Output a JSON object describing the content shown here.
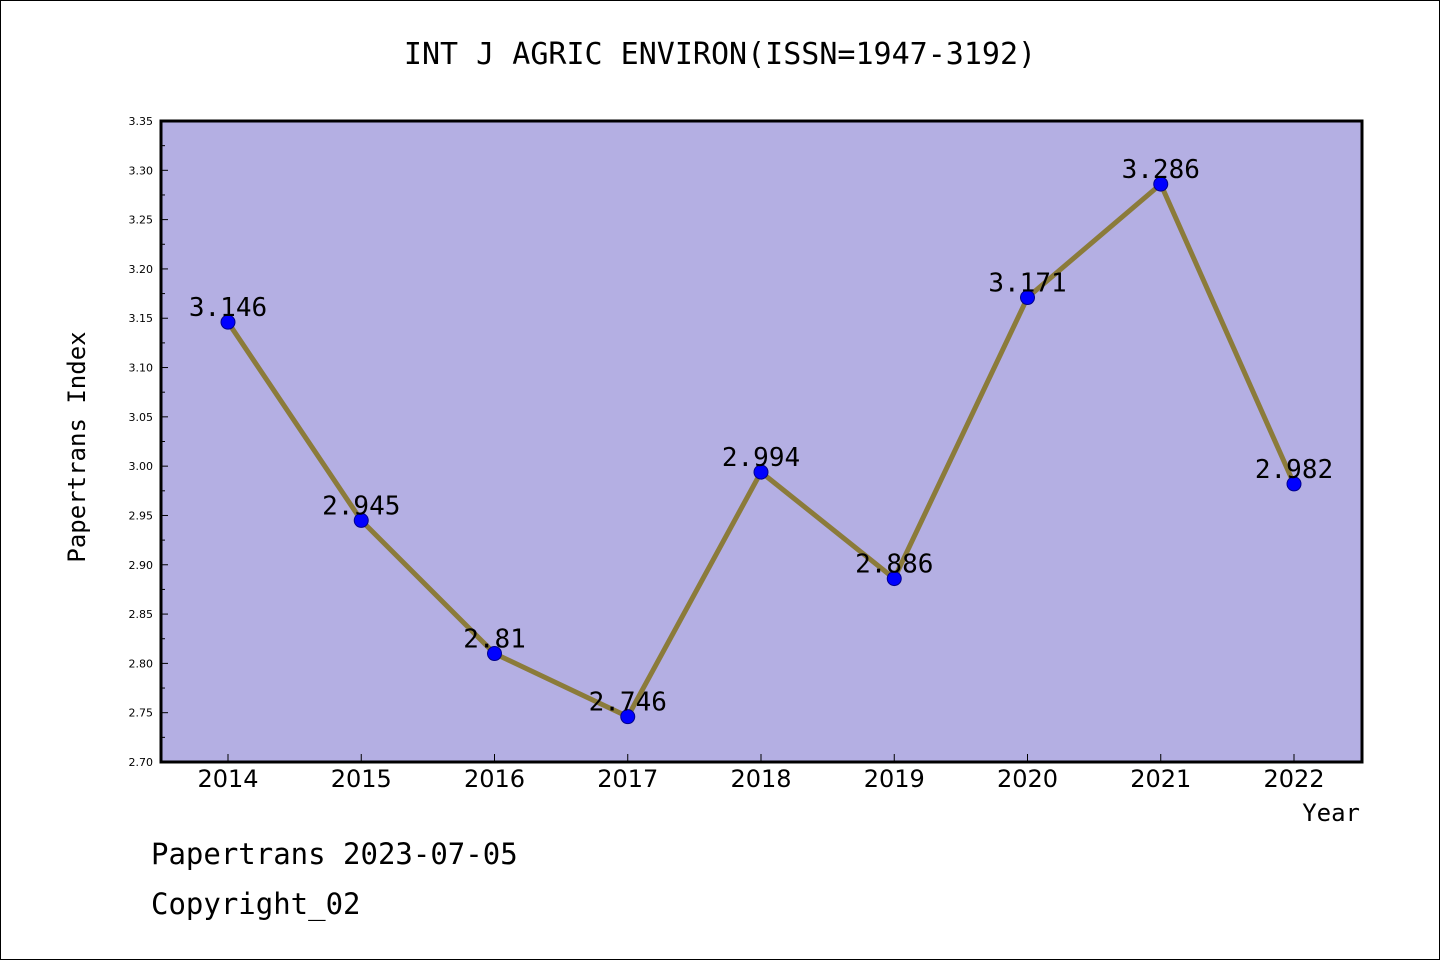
{
  "chart_data": {
    "type": "line",
    "title": "INT J AGRIC ENVIRON(ISSN=1947-3192)",
    "xlabel": "Year",
    "ylabel": "Papertrans Index",
    "categories": [
      "2014",
      "2015",
      "2016",
      "2017",
      "2018",
      "2019",
      "2020",
      "2021",
      "2022"
    ],
    "values": [
      3.146,
      2.945,
      2.81,
      2.746,
      2.994,
      2.886,
      3.171,
      3.286,
      2.982
    ],
    "data_labels": [
      "3.146",
      "2.945",
      "2.81",
      "2.746",
      "2.994",
      "2.886",
      "3.171",
      "3.286",
      "2.982"
    ],
    "ylim": [
      2.7,
      3.35
    ],
    "yticks": [
      "2.70",
      "2.75",
      "2.80",
      "2.85",
      "2.90",
      "2.95",
      "3.00",
      "3.05",
      "3.10",
      "3.15",
      "3.20",
      "3.25",
      "3.30",
      "3.35"
    ],
    "grid": false,
    "colors": {
      "plot_background": "#b4afe3",
      "line": "#8b7b3a",
      "marker": "#0000ff"
    }
  },
  "footer": {
    "date_text": "Papertrans 2023-07-05",
    "copyright_text": "Copyright_02"
  }
}
